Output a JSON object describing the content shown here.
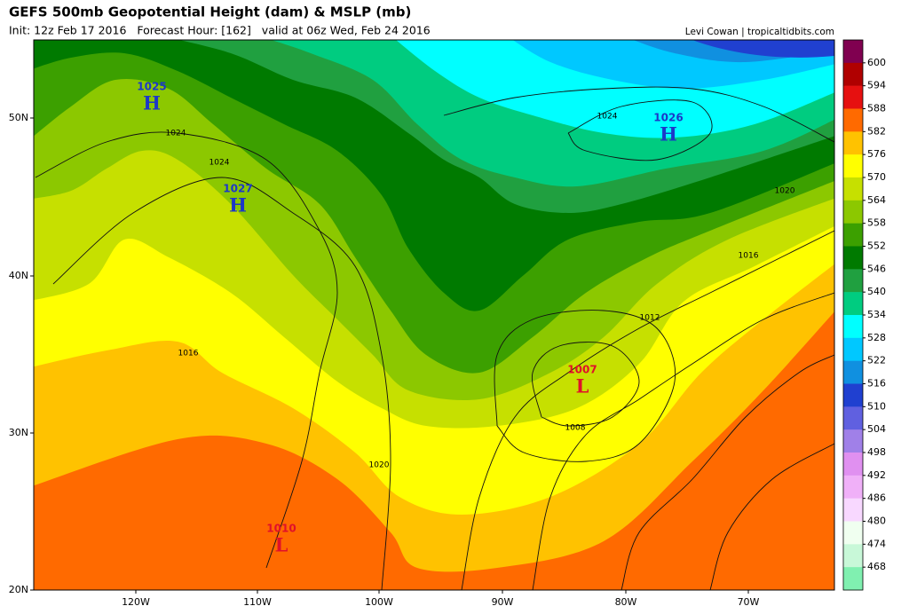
{
  "header": {
    "title": "GEFS 500mb Geopotential Height (dam) & MSLP (mb)",
    "subtitle": "Init: 12z Feb 17 2016   Forecast Hour: [162]   valid at 06z Wed, Feb 24 2016",
    "credit": "Levi Cowan | tropicaltidbits.com"
  },
  "axes": {
    "lat_labels": [
      "50N",
      "40N",
      "30N",
      "20N"
    ],
    "lon_labels": [
      "120W",
      "110W",
      "100W",
      "90W",
      "80W",
      "70W"
    ]
  },
  "centers": [
    {
      "value": "1025",
      "symbol": "H"
    },
    {
      "value": "1027",
      "symbol": "H"
    },
    {
      "value": "1026",
      "symbol": "H"
    },
    {
      "value": "1007",
      "symbol": "L"
    },
    {
      "value": "1010",
      "symbol": "L"
    }
  ],
  "isobar_labels": [
    "1024",
    "1024",
    "1024",
    "1020",
    "1016",
    "1016",
    "1012",
    "1008",
    "1020"
  ],
  "colorbar": {
    "colors": [
      "#800050",
      "#b00000",
      "#e61010",
      "#ff6a00",
      "#ffc200",
      "#ffff00",
      "#c6e000",
      "#8cc800",
      "#3ca000",
      "#007a00",
      "#20a040",
      "#00cc80",
      "#00ffff",
      "#00c8ff",
      "#1090e0",
      "#2040d0",
      "#6060e0",
      "#a080e8",
      "#e090f0",
      "#f0b0f8",
      "#f8d8ff",
      "#f0fff0",
      "#c8f8d8",
      "#80f0b0"
    ],
    "labels": [
      "600",
      "594",
      "588",
      "582",
      "576",
      "570",
      "564",
      "558",
      "552",
      "546",
      "540",
      "534",
      "528",
      "522",
      "516",
      "510",
      "504",
      "498",
      "492",
      "486",
      "480",
      "474",
      "468"
    ]
  }
}
